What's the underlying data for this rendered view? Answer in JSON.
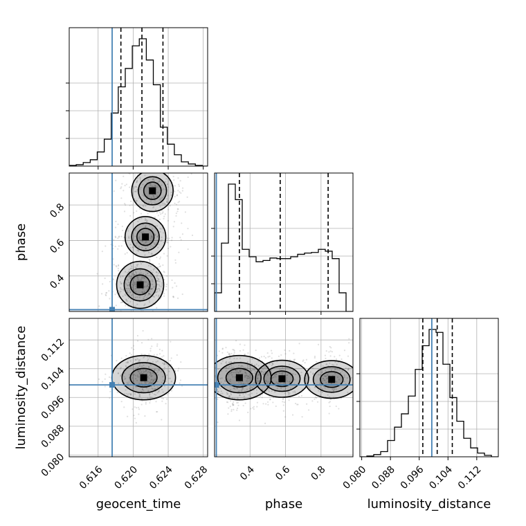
{
  "figure_type": "corner plot",
  "colors": {
    "truth": "#4682b4",
    "hist": "#000000",
    "grid": "#b0b0b0",
    "scatter": "#7f7f7f"
  },
  "chart_data": {
    "type": "corner",
    "parameters": [
      "geocent_time",
      "phase",
      "luminosity_distance"
    ],
    "axis_labels": {
      "geocent_time": "geocent_time",
      "phase": "phase",
      "luminosity_distance": "luminosity_distance"
    },
    "ranges": {
      "geocent_time": [
        0.6127,
        0.6285
      ],
      "phase": [
        0.2,
        0.98
      ],
      "luminosity_distance": [
        0.0795,
        0.118
      ]
    },
    "ticks": {
      "geocent_time": [
        "0.616",
        "0.620",
        "0.624",
        "0.628"
      ],
      "phase": [
        "0.4",
        "0.6",
        "0.8"
      ],
      "luminosity_distance": [
        "0.080",
        "0.088",
        "0.096",
        "0.104",
        "0.112"
      ]
    },
    "truths": {
      "geocent_time": 0.6176,
      "phase": 0.21,
      "luminosity_distance": 0.0995
    },
    "quantiles": {
      "geocent_time": [
        0.6186,
        0.621,
        0.6234
      ],
      "phase": [
        0.34,
        0.57,
        0.84
      ],
      "luminosity_distance": [
        0.097,
        0.101,
        0.1052
      ]
    },
    "histograms": {
      "geocent_time": {
        "bin_edges": [
          0.6127,
          0.6135,
          0.6143,
          0.6151,
          0.6159,
          0.6167,
          0.6175,
          0.6183,
          0.6191,
          0.6199,
          0.6207,
          0.6215,
          0.6223,
          0.6231,
          0.6239,
          0.6247,
          0.6255,
          0.6263,
          0.6271,
          0.6279,
          0.6287
        ],
        "counts": [
          1,
          2,
          5,
          9,
          20,
          38,
          75,
          112,
          138,
          170,
          180,
          150,
          115,
          55,
          31,
          16,
          6,
          3,
          1,
          0
        ]
      },
      "phase": {
        "bin_edges": [
          0.2,
          0.239,
          0.278,
          0.317,
          0.356,
          0.395,
          0.434,
          0.473,
          0.512,
          0.551,
          0.59,
          0.629,
          0.668,
          0.707,
          0.746,
          0.785,
          0.824,
          0.863,
          0.902,
          0.941,
          0.98
        ],
        "counts": [
          30,
          110,
          205,
          180,
          100,
          88,
          80,
          82,
          86,
          85,
          85,
          88,
          92,
          94,
          95,
          100,
          97,
          85,
          30,
          0
        ]
      },
      "luminosity_distance": {
        "bin_edges": [
          0.0795,
          0.08143,
          0.08335,
          0.08528,
          0.0872,
          0.08913,
          0.09105,
          0.09298,
          0.0949,
          0.09683,
          0.09875,
          0.10068,
          0.1026,
          0.10453,
          0.10645,
          0.10838,
          0.1103,
          0.11223,
          0.11415,
          0.11608,
          0.118
        ],
        "counts": [
          0,
          1,
          3,
          7,
          22,
          40,
          58,
          82,
          118,
          150,
          172,
          168,
          125,
          80,
          48,
          25,
          12,
          5,
          2,
          0
        ]
      }
    },
    "joint_modes": {
      "phase_vs_geocent_time": [
        {
          "geocent_time": 0.6208,
          "phase": 0.35,
          "weight": 1.0
        },
        {
          "geocent_time": 0.6214,
          "phase": 0.62,
          "weight": 0.55
        },
        {
          "geocent_time": 0.6222,
          "phase": 0.88,
          "weight": 0.6
        }
      ],
      "luminosity_distance_vs_geocent_time": [
        {
          "geocent_time": 0.6212,
          "luminosity_distance": 0.1015,
          "weight": 1.0
        }
      ],
      "luminosity_distance_vs_phase": [
        {
          "phase": 0.34,
          "luminosity_distance": 0.1015,
          "weight": 1.0
        },
        {
          "phase": 0.58,
          "luminosity_distance": 0.1012,
          "weight": 0.45
        },
        {
          "phase": 0.86,
          "luminosity_distance": 0.101,
          "weight": 0.5
        }
      ]
    }
  }
}
